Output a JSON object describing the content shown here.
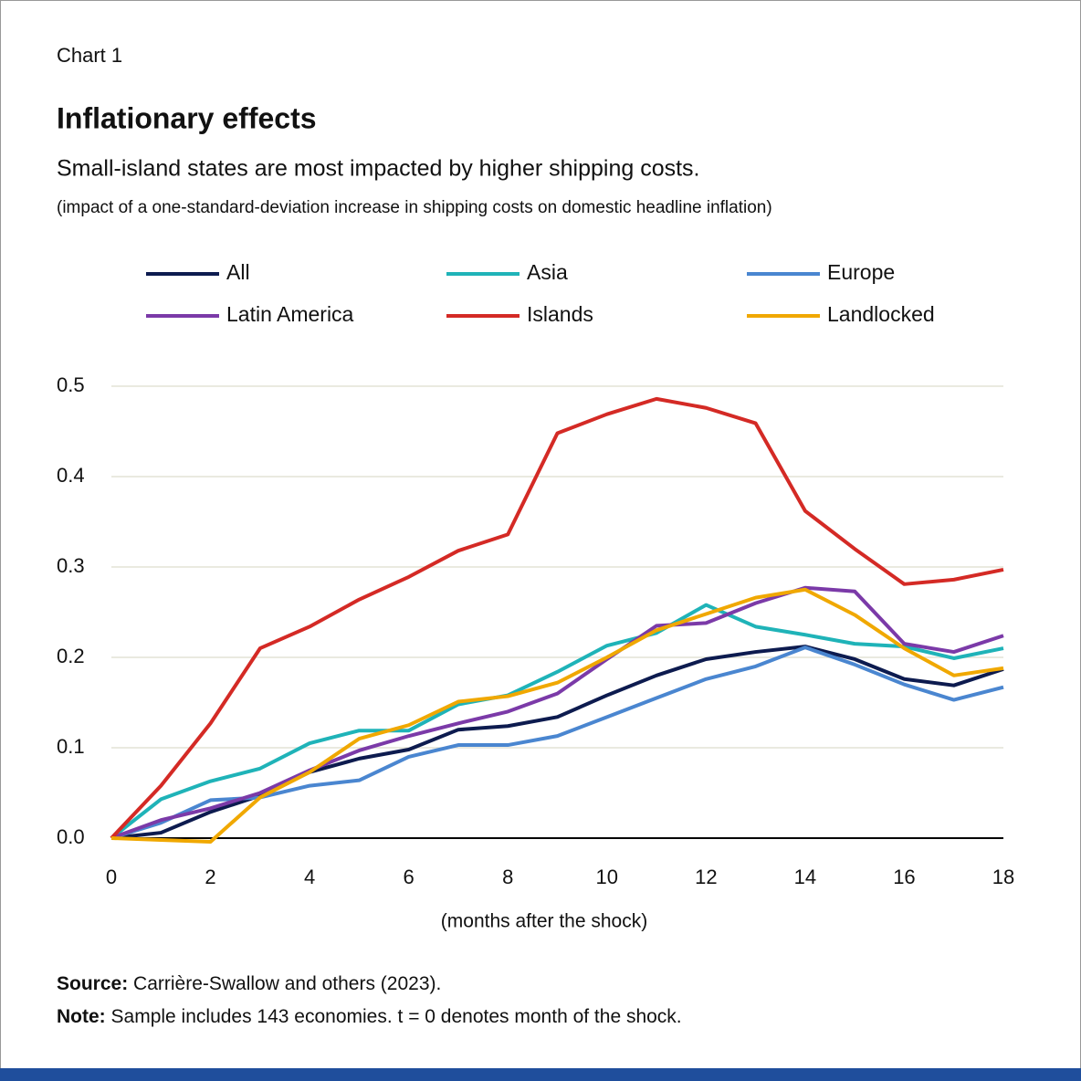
{
  "chart_data": {
    "type": "line",
    "kicker": "Chart 1",
    "title": "Inflationary effects",
    "subtitle": "Small-island states are most impacted by higher shipping costs.",
    "subtitle2": "(impact of a one-standard-deviation increase in shipping costs on domestic headline inflation)",
    "x_label": "(months after the shock)",
    "source": {
      "label": "Source:",
      "text": "Carrière-Swallow and others (2023)."
    },
    "note": {
      "label": "Note:",
      "text": "Sample includes 143 economies. t = 0 denotes month of the shock."
    },
    "x": [
      0,
      1,
      2,
      3,
      4,
      5,
      6,
      7,
      8,
      9,
      10,
      11,
      12,
      13,
      14,
      15,
      16,
      17,
      18
    ],
    "xlim": [
      0,
      18
    ],
    "xticks": [
      0,
      2,
      4,
      6,
      8,
      10,
      12,
      14,
      16,
      18
    ],
    "ylim": [
      0,
      0.5
    ],
    "yticks": [
      {
        "value": 0,
        "label": "0.0"
      },
      0.1,
      0.2,
      0.3,
      0.4,
      0.5
    ],
    "grid": true,
    "series": [
      {
        "name": "All",
        "color": "#0d1b4f",
        "values": [
          0,
          0.006,
          0.029,
          0.047,
          0.073,
          0.088,
          0.098,
          0.12,
          0.124,
          0.134,
          0.158,
          0.18,
          0.198,
          0.206,
          0.212,
          0.198,
          0.176,
          0.169,
          0.187
        ]
      },
      {
        "name": "Asia",
        "color": "#1fb3b8",
        "values": [
          0,
          0.043,
          0.063,
          0.077,
          0.105,
          0.119,
          0.119,
          0.148,
          0.158,
          0.184,
          0.213,
          0.227,
          0.258,
          0.234,
          0.225,
          0.215,
          0.212,
          0.199,
          0.21
        ]
      },
      {
        "name": "Europe",
        "color": "#4a86d0",
        "values": [
          0,
          0.017,
          0.042,
          0.045,
          0.058,
          0.064,
          0.09,
          0.103,
          0.103,
          0.113,
          0.134,
          0.155,
          0.176,
          0.19,
          0.211,
          0.192,
          0.17,
          0.153,
          0.167
        ]
      },
      {
        "name": "Latin America",
        "color": "#7b3aa8",
        "values": [
          0,
          0.02,
          0.033,
          0.05,
          0.075,
          0.097,
          0.113,
          0.127,
          0.14,
          0.16,
          0.198,
          0.235,
          0.238,
          0.26,
          0.277,
          0.273,
          0.215,
          0.206,
          0.224
        ]
      },
      {
        "name": "Islands",
        "color": "#d42a25",
        "values": [
          0,
          0.058,
          0.127,
          0.21,
          0.234,
          0.264,
          0.289,
          0.318,
          0.336,
          0.448,
          0.469,
          0.486,
          0.476,
          0.459,
          0.362,
          0.32,
          0.281,
          0.286,
          0.297
        ]
      },
      {
        "name": "Landlocked",
        "color": "#f0a800",
        "values": [
          0,
          -0.002,
          -0.004,
          0.045,
          0.073,
          0.11,
          0.125,
          0.151,
          0.157,
          0.172,
          0.2,
          0.23,
          0.248,
          0.266,
          0.275,
          0.247,
          0.21,
          0.18,
          0.188
        ]
      }
    ]
  }
}
